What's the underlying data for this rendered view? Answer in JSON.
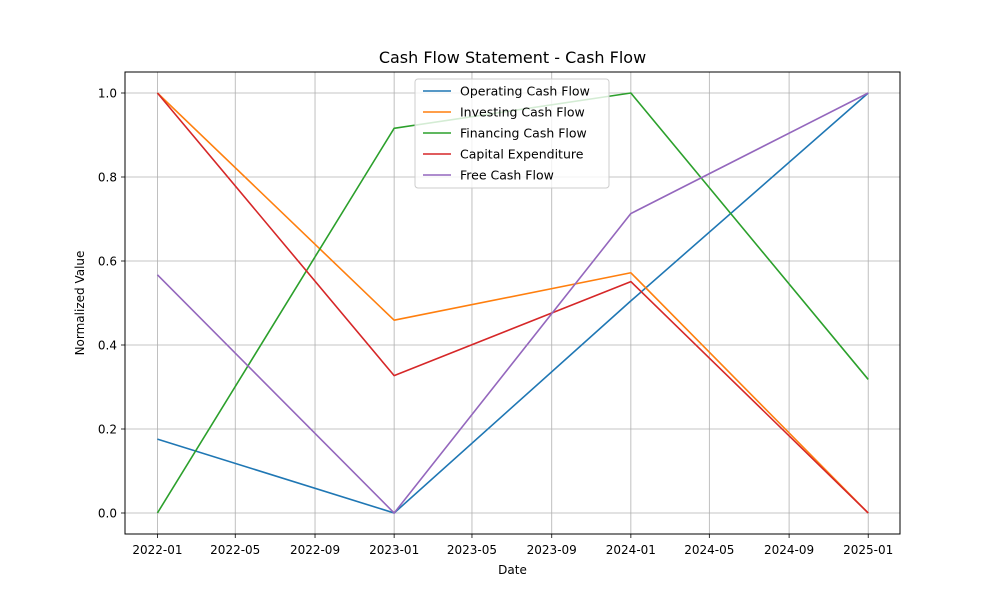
{
  "chart_data": {
    "type": "line",
    "title": "Cash Flow Statement - Cash Flow",
    "xlabel": "Date",
    "ylabel": "Normalized Value",
    "x": [
      "2022-01-01",
      "2023-01-01",
      "2024-01-01",
      "2025-01-01"
    ],
    "xlim": [
      "2021-11-12",
      "2025-02-19"
    ],
    "ylim": [
      -0.05,
      1.05
    ],
    "x_ticks": [
      "2022-01",
      "2022-05",
      "2022-09",
      "2023-01",
      "2023-05",
      "2023-09",
      "2024-01",
      "2024-05",
      "2024-09",
      "2025-01"
    ],
    "x_tick_dates": [
      "2022-01-01",
      "2022-05-01",
      "2022-09-01",
      "2023-01-01",
      "2023-05-01",
      "2023-09-01",
      "2024-01-01",
      "2024-05-01",
      "2024-09-01",
      "2025-01-01"
    ],
    "y_ticks": [
      0.0,
      0.2,
      0.4,
      0.6,
      0.8,
      1.0
    ],
    "y_tick_labels": [
      "0.0",
      "0.2",
      "0.4",
      "0.6",
      "0.8",
      "1.0"
    ],
    "grid": true,
    "legend_position": "top-center",
    "series": [
      {
        "name": "Operating Cash Flow",
        "color": "#1f77b4",
        "values": [
          0.176,
          0.0,
          0.505,
          1.0
        ]
      },
      {
        "name": "Investing Cash Flow",
        "color": "#ff7f0e",
        "values": [
          1.0,
          0.459,
          0.572,
          0.0
        ]
      },
      {
        "name": "Financing Cash Flow",
        "color": "#2ca02c",
        "values": [
          0.0,
          0.916,
          1.0,
          0.318
        ]
      },
      {
        "name": "Capital Expenditure",
        "color": "#d62728",
        "values": [
          1.0,
          0.327,
          0.551,
          0.0
        ]
      },
      {
        "name": "Free Cash Flow",
        "color": "#9467bd",
        "values": [
          0.567,
          0.0,
          0.713,
          1.0
        ]
      }
    ]
  }
}
